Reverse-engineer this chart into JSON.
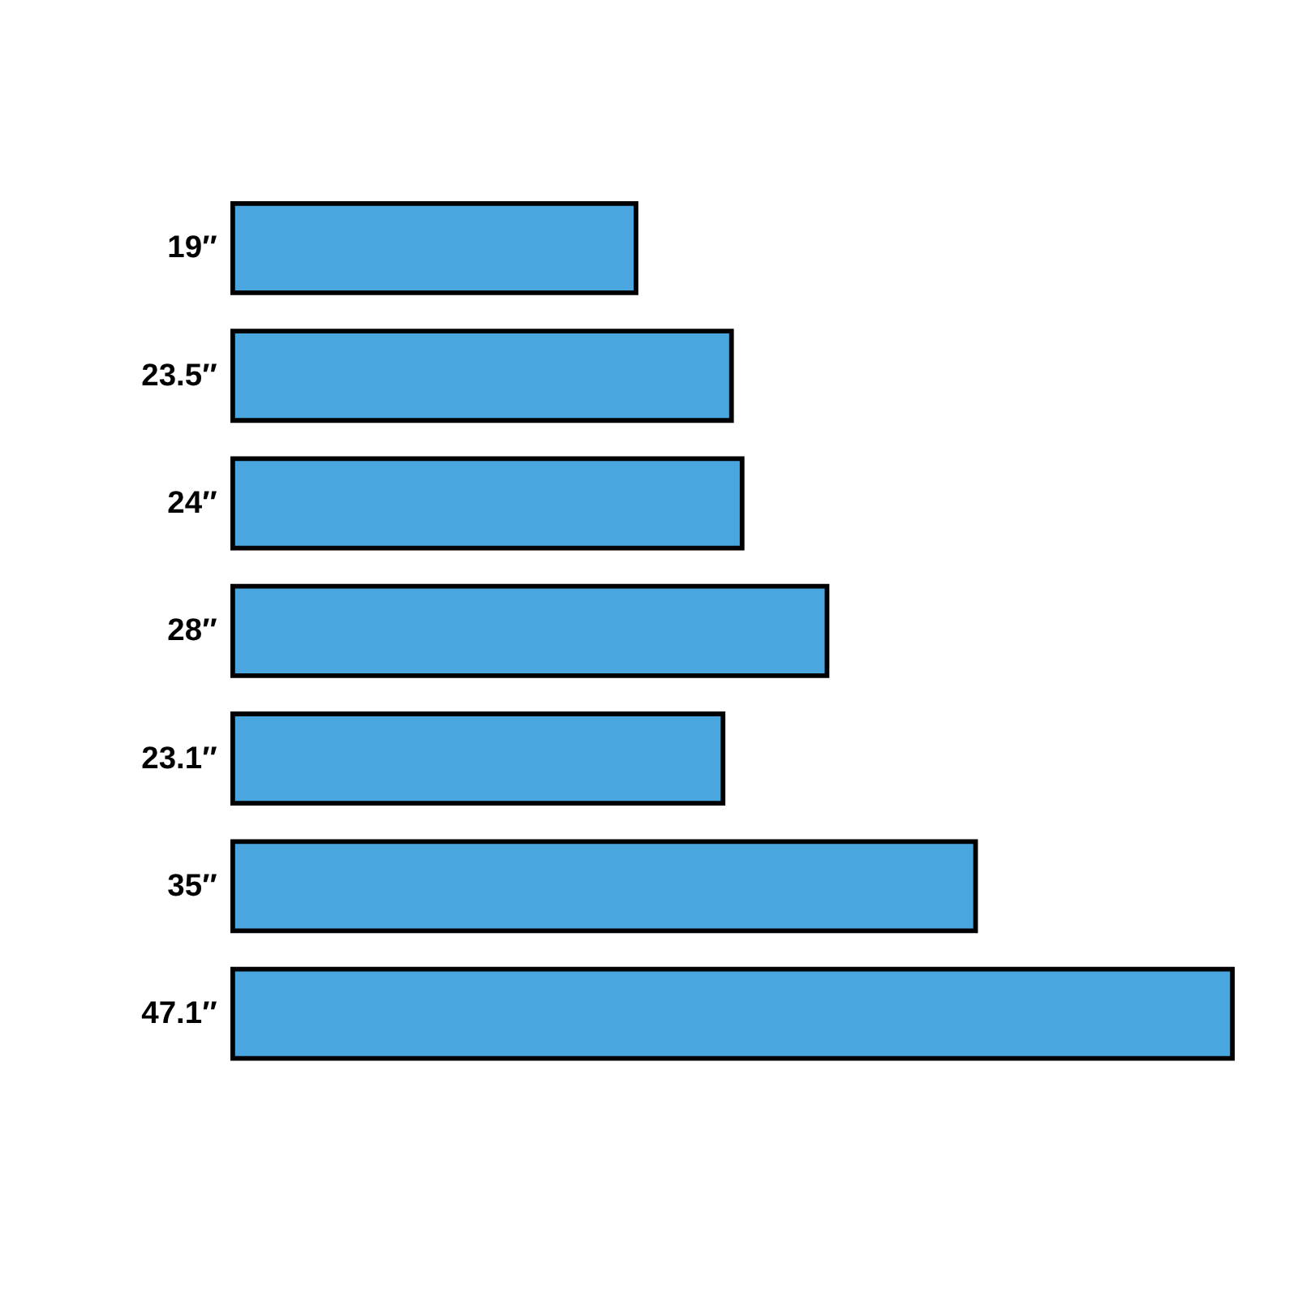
{
  "chart_data": {
    "type": "bar",
    "orientation": "horizontal",
    "categories": [
      null,
      null,
      null,
      null,
      null,
      null,
      null
    ],
    "values": [
      19,
      23.5,
      24,
      28,
      23.1,
      35,
      47.1
    ],
    "value_labels": [
      "19″",
      "23.5″",
      "24″",
      "28″",
      "23.1″",
      "35″",
      "47.1″"
    ],
    "xlim": [
      0,
      47.1
    ],
    "tick_labels": false,
    "color": "#4aa6df"
  }
}
